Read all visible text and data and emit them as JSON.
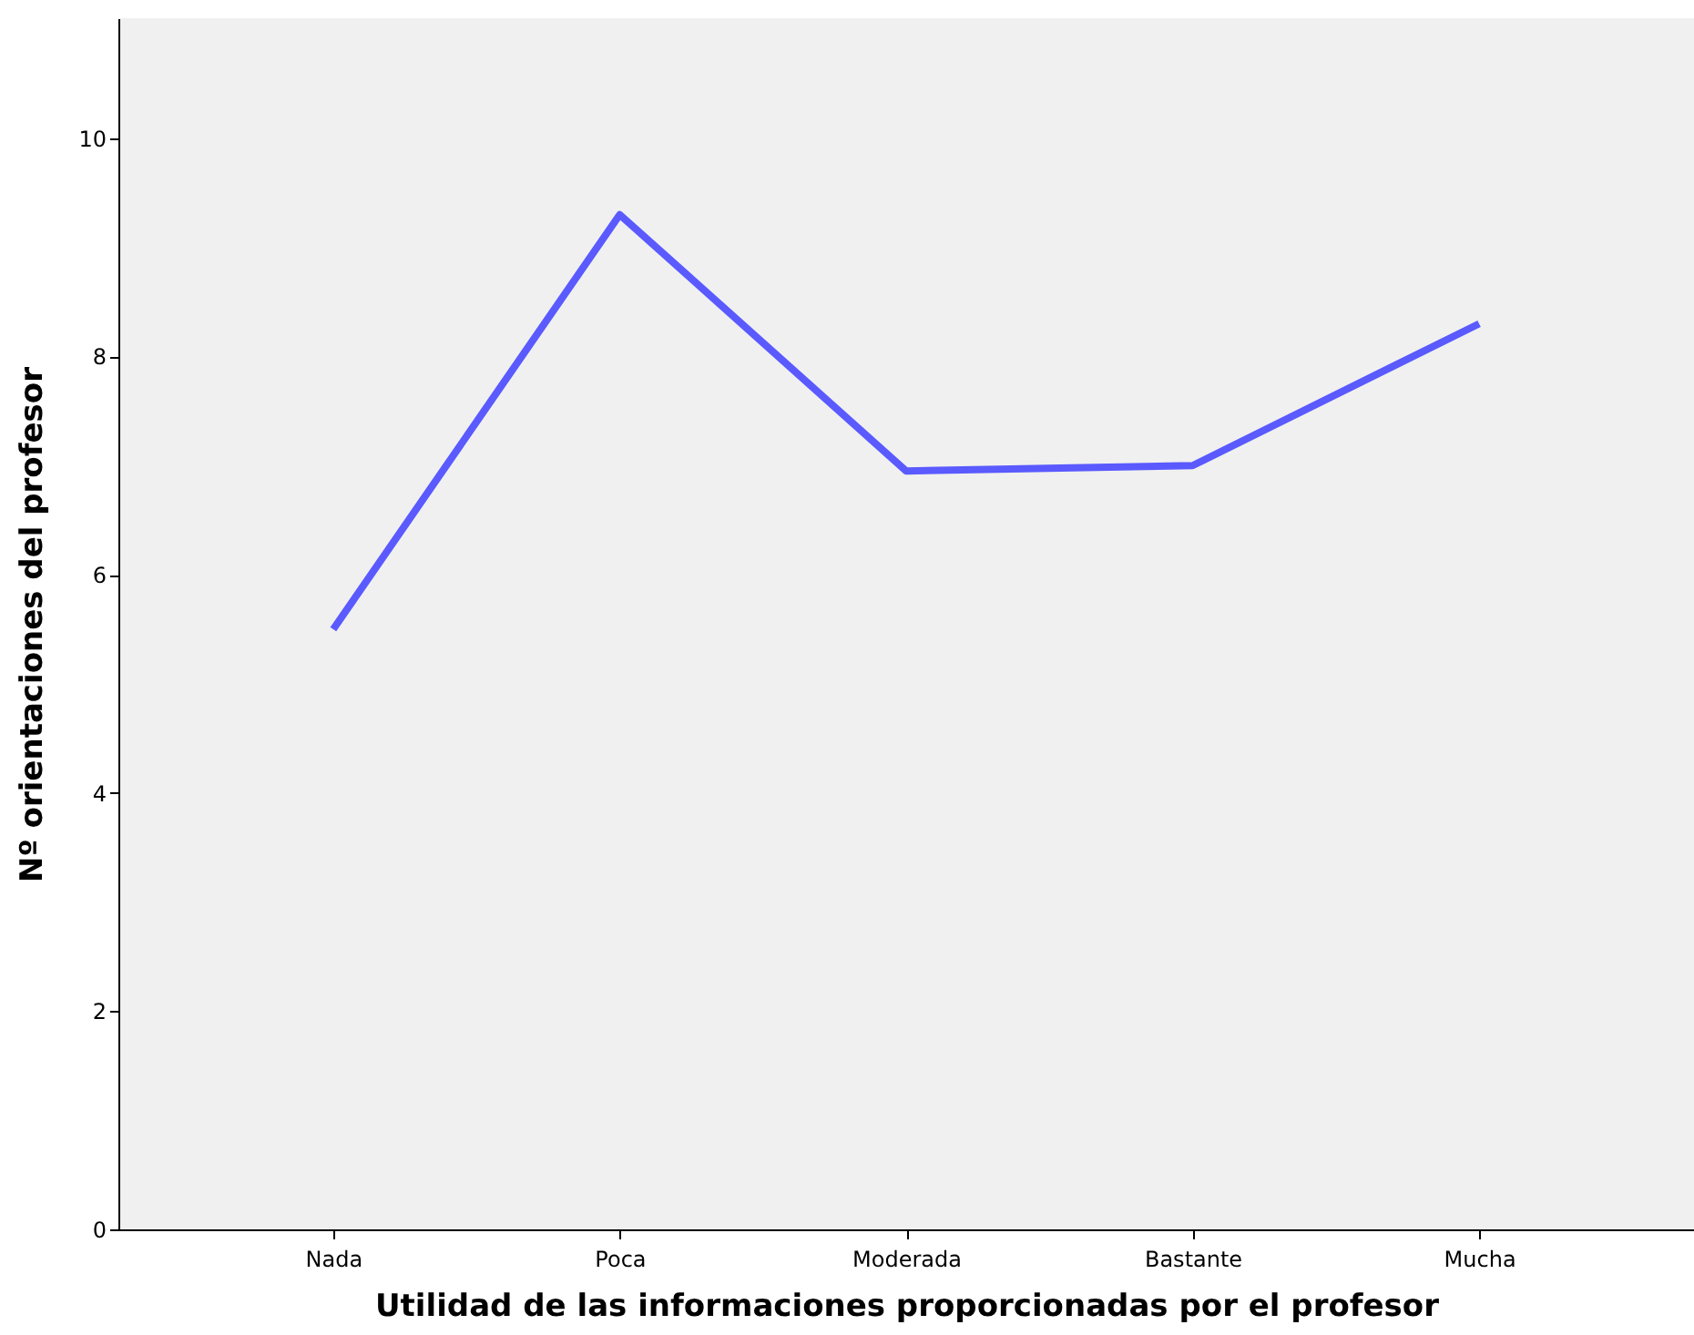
{
  "chart_data": {
    "type": "line",
    "xlabel": "Utilidad de las informaciones proporcionadas por el profesor",
    "ylabel": "Nº orientaciones del profesor",
    "categories": [
      "Nada",
      "Poca",
      "Moderada",
      "Bastante",
      "Mucha"
    ],
    "series": [
      {
        "color": "#5a5aff",
        "values": [
          5.5,
          9.3,
          6.95,
          7.0,
          8.3
        ]
      }
    ],
    "ylim": [
      0,
      11.1
    ],
    "yticks": [
      0,
      2,
      4,
      6,
      8,
      10
    ],
    "grid": false,
    "legend": false,
    "marker": "none",
    "line_style": "solid"
  }
}
